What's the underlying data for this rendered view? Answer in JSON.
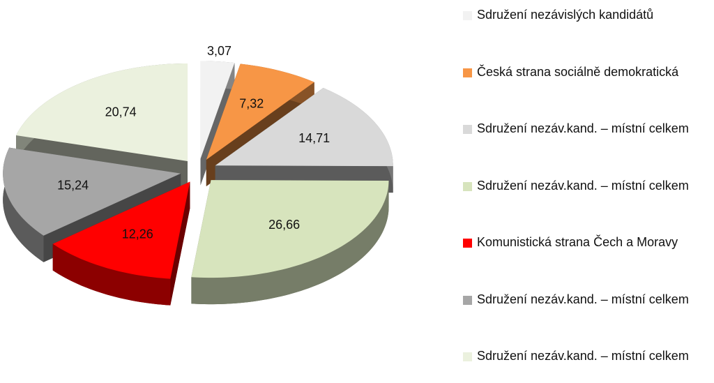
{
  "chart_data": {
    "type": "pie",
    "categories": [
      "Sdružení nezávislých kandidátů",
      "Česká strana sociálně demokratická",
      "Sdružení nezáv.kand. – místní celkem",
      "Sdružení nezáv.kand. – místní celkem",
      "Komunistická strana Čech a Moravy",
      "Sdružení nezáv.kand. – místní celkem",
      "Sdružení nezáv.kand. – místní celkem"
    ],
    "values": [
      3.07,
      7.32,
      14.71,
      26.66,
      12.26,
      15.24,
      20.74
    ],
    "value_labels": [
      "3,07",
      "7,32",
      "14,71",
      "26,66",
      "12,26",
      "15,24",
      "20,74"
    ],
    "colors": [
      "#f2f2f2",
      "#f79646",
      "#d9d9d9",
      "#d7e4bd",
      "#ff0000",
      "#a6a6a6",
      "#ebf1de"
    ],
    "legend": "right"
  }
}
